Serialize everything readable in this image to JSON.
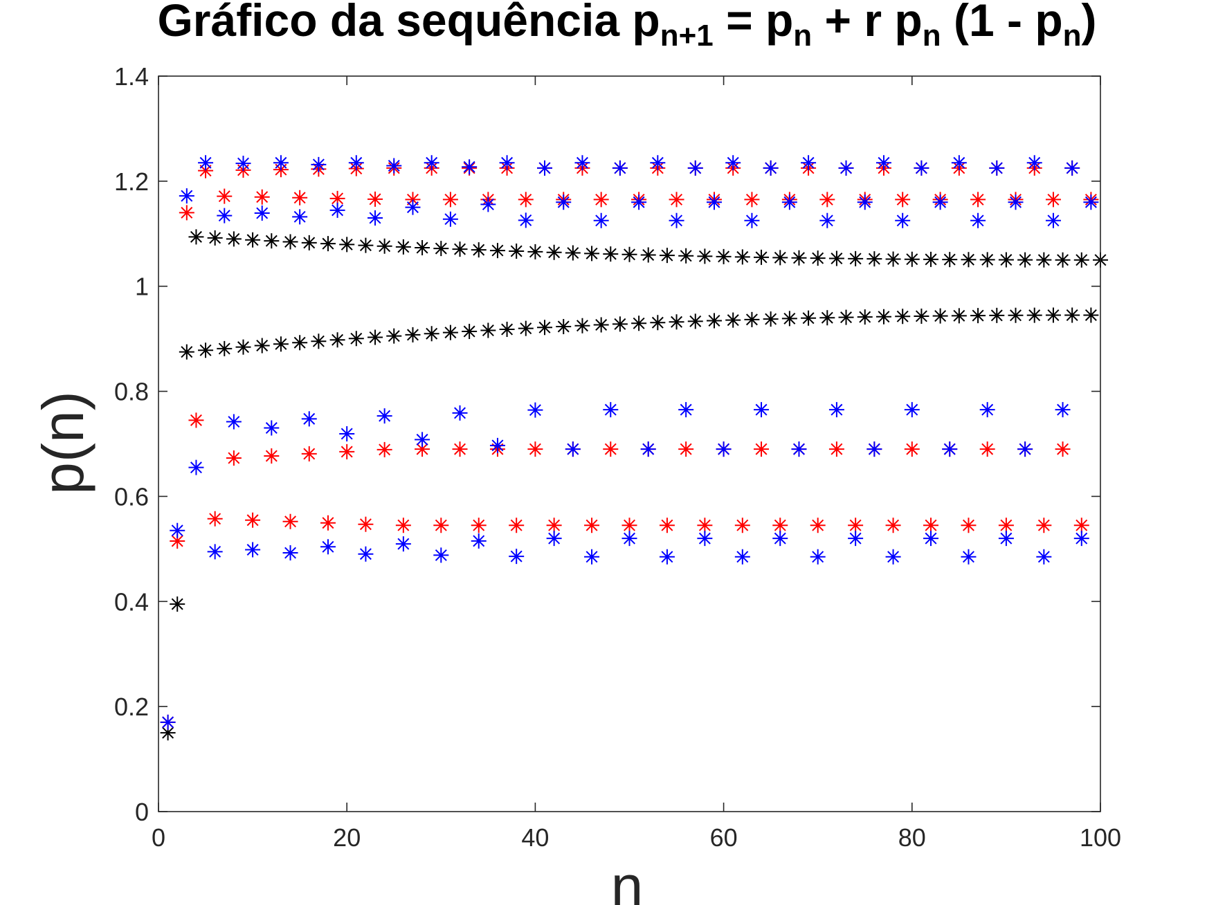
{
  "chart_data": {
    "type": "scatter",
    "title": "Gráfico da sequência p",
    "title_parts": [
      {
        "text": "Gráfico da sequência p",
        "sub": false
      },
      {
        "text": "n+1",
        "sub": true
      },
      {
        "text": " = p",
        "sub": false
      },
      {
        "text": "n",
        "sub": true
      },
      {
        "text": " + r p",
        "sub": false
      },
      {
        "text": "n",
        "sub": true
      },
      {
        "text": " (1 - p",
        "sub": false
      },
      {
        "text": "n",
        "sub": true
      },
      {
        "text": ")",
        "sub": false
      }
    ],
    "xlabel": "n",
    "ylabel": "p(n)",
    "xlim": [
      0,
      100
    ],
    "ylim": [
      0,
      1.4
    ],
    "xticks": [
      0,
      20,
      40,
      60,
      80,
      100
    ],
    "xtick_labels": [
      "0",
      "20",
      "40",
      "60",
      "80",
      "100"
    ],
    "yticks": [
      0,
      0.2,
      0.4,
      0.6,
      0.8,
      1.0,
      1.2,
      1.4
    ],
    "ytick_labels": [
      "0",
      "0.2",
      "0.4",
      "0.6",
      "0.8",
      "1",
      "1.2",
      "1.4"
    ],
    "grid": false,
    "marker": "asterisk",
    "series": [
      {
        "color": "#000000",
        "pattern": "period2_converging",
        "n_range": [
          1,
          100
        ],
        "p1": 0.15,
        "p2": 0.395,
        "even_start": 1.095,
        "even_end": 1.05,
        "odd_start": 0.875,
        "odd_end": 0.945
      },
      {
        "color": "#ff0000",
        "pattern": "period4",
        "n_range": [
          1,
          99
        ],
        "p1": 0.17,
        "p2": 0.515,
        "p3": 1.14,
        "p4": 0.745,
        "cycle_start": 5,
        "cycle_values": [
          1.225,
          0.545,
          1.165,
          0.69
        ],
        "early_cycle_values": [
          1.22,
          0.558,
          1.172,
          0.67
        ]
      },
      {
        "color": "#0000ff",
        "pattern": "period8_transient",
        "n_range": [
          1,
          99
        ],
        "p1": 0.17,
        "p2": 0.535,
        "p3": 1.172,
        "p4": 0.655,
        "cycle_start": 5,
        "early_cycle_values": [
          1.235,
          0.495,
          1.135,
          0.74
        ],
        "late_cycle_values": [
          1.235,
          0.485,
          1.125,
          0.765,
          1.225,
          0.52,
          1.16,
          0.69
        ]
      }
    ]
  }
}
